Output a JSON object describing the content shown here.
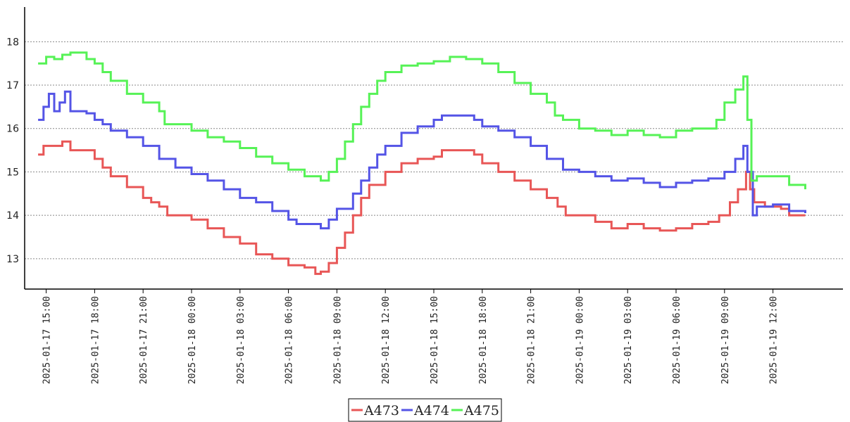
{
  "chart_data": {
    "type": "line",
    "title": "",
    "xlabel": "",
    "ylabel": "",
    "x_range": [
      "2025-01-17 13:40",
      "2025-01-19 16:20"
    ],
    "ylim": [
      12.3,
      18.8
    ],
    "y_ticks": [
      13,
      14,
      15,
      16,
      17,
      18
    ],
    "x_ticks": [
      "2025-01-17 15:00",
      "2025-01-17 18:00",
      "2025-01-17 21:00",
      "2025-01-18 00:00",
      "2025-01-18 03:00",
      "2025-01-18 06:00",
      "2025-01-18 09:00",
      "2025-01-18 12:00",
      "2025-01-18 15:00",
      "2025-01-18 18:00",
      "2025-01-18 21:00",
      "2025-01-19 00:00",
      "2025-01-19 03:00",
      "2025-01-19 06:00",
      "2025-01-19 09:00",
      "2025-01-19 12:00"
    ],
    "grid": "horizontal",
    "legend_position": "bottom-center",
    "series": [
      {
        "name": "A473",
        "color": "#e85656",
        "points": [
          [
            "2025-01-17 14:30",
            15.4
          ],
          [
            "2025-01-17 14:50",
            15.6
          ],
          [
            "2025-01-17 15:30",
            15.6
          ],
          [
            "2025-01-17 16:00",
            15.7
          ],
          [
            "2025-01-17 16:30",
            15.5
          ],
          [
            "2025-01-17 17:30",
            15.5
          ],
          [
            "2025-01-17 18:00",
            15.3
          ],
          [
            "2025-01-17 18:30",
            15.1
          ],
          [
            "2025-01-17 19:00",
            14.9
          ],
          [
            "2025-01-17 20:00",
            14.65
          ],
          [
            "2025-01-17 21:00",
            14.4
          ],
          [
            "2025-01-17 21:30",
            14.3
          ],
          [
            "2025-01-17 22:00",
            14.2
          ],
          [
            "2025-01-17 22:30",
            14.0
          ],
          [
            "2025-01-17 23:30",
            14.0
          ],
          [
            "2025-01-18 00:00",
            13.9
          ],
          [
            "2025-01-18 01:00",
            13.7
          ],
          [
            "2025-01-18 02:00",
            13.5
          ],
          [
            "2025-01-18 03:00",
            13.35
          ],
          [
            "2025-01-18 04:00",
            13.1
          ],
          [
            "2025-01-18 05:00",
            13.0
          ],
          [
            "2025-01-18 06:00",
            12.85
          ],
          [
            "2025-01-18 07:00",
            12.8
          ],
          [
            "2025-01-18 07:40",
            12.65
          ],
          [
            "2025-01-18 08:00",
            12.7
          ],
          [
            "2025-01-18 08:30",
            12.9
          ],
          [
            "2025-01-18 09:00",
            13.25
          ],
          [
            "2025-01-18 09:30",
            13.6
          ],
          [
            "2025-01-18 10:00",
            14.0
          ],
          [
            "2025-01-18 10:30",
            14.4
          ],
          [
            "2025-01-18 11:00",
            14.7
          ],
          [
            "2025-01-18 12:00",
            15.0
          ],
          [
            "2025-01-18 13:00",
            15.2
          ],
          [
            "2025-01-18 14:00",
            15.3
          ],
          [
            "2025-01-18 15:00",
            15.35
          ],
          [
            "2025-01-18 15:30",
            15.5
          ],
          [
            "2025-01-18 17:00",
            15.5
          ],
          [
            "2025-01-18 17:30",
            15.4
          ],
          [
            "2025-01-18 18:00",
            15.2
          ],
          [
            "2025-01-18 19:00",
            15.0
          ],
          [
            "2025-01-18 20:00",
            14.8
          ],
          [
            "2025-01-18 21:00",
            14.6
          ],
          [
            "2025-01-18 22:00",
            14.4
          ],
          [
            "2025-01-18 22:40",
            14.2
          ],
          [
            "2025-01-18 23:10",
            14.0
          ],
          [
            "2025-01-19 00:00",
            14.0
          ],
          [
            "2025-01-19 01:00",
            13.85
          ],
          [
            "2025-01-19 02:00",
            13.7
          ],
          [
            "2025-01-19 03:00",
            13.8
          ],
          [
            "2025-01-19 04:00",
            13.7
          ],
          [
            "2025-01-19 05:00",
            13.65
          ],
          [
            "2025-01-19 06:00",
            13.7
          ],
          [
            "2025-01-19 07:00",
            13.8
          ],
          [
            "2025-01-19 08:00",
            13.85
          ],
          [
            "2025-01-19 08:40",
            14.0
          ],
          [
            "2025-01-19 09:20",
            14.3
          ],
          [
            "2025-01-19 09:50",
            14.6
          ],
          [
            "2025-01-19 10:20",
            15.0
          ],
          [
            "2025-01-19 10:35",
            14.6
          ],
          [
            "2025-01-19 10:50",
            14.3
          ],
          [
            "2025-01-19 11:30",
            14.2
          ],
          [
            "2025-01-19 12:30",
            14.15
          ],
          [
            "2025-01-19 13:00",
            14.0
          ],
          [
            "2025-01-19 14:00",
            14.0
          ]
        ]
      },
      {
        "name": "A474",
        "color": "#5454e6",
        "points": [
          [
            "2025-01-17 14:30",
            16.2
          ],
          [
            "2025-01-17 14:50",
            16.5
          ],
          [
            "2025-01-17 15:10",
            16.8
          ],
          [
            "2025-01-17 15:30",
            16.4
          ],
          [
            "2025-01-17 15:50",
            16.6
          ],
          [
            "2025-01-17 16:10",
            16.85
          ],
          [
            "2025-01-17 16:30",
            16.4
          ],
          [
            "2025-01-17 17:30",
            16.35
          ],
          [
            "2025-01-17 18:00",
            16.2
          ],
          [
            "2025-01-17 18:30",
            16.1
          ],
          [
            "2025-01-17 19:00",
            15.95
          ],
          [
            "2025-01-17 20:00",
            15.8
          ],
          [
            "2025-01-17 21:00",
            15.6
          ],
          [
            "2025-01-17 22:00",
            15.3
          ],
          [
            "2025-01-17 23:00",
            15.1
          ],
          [
            "2025-01-18 00:00",
            14.95
          ],
          [
            "2025-01-18 01:00",
            14.8
          ],
          [
            "2025-01-18 02:00",
            14.6
          ],
          [
            "2025-01-18 03:00",
            14.4
          ],
          [
            "2025-01-18 04:00",
            14.3
          ],
          [
            "2025-01-18 05:00",
            14.1
          ],
          [
            "2025-01-18 06:00",
            13.9
          ],
          [
            "2025-01-18 06:30",
            13.8
          ],
          [
            "2025-01-18 08:00",
            13.7
          ],
          [
            "2025-01-18 08:30",
            13.9
          ],
          [
            "2025-01-18 09:00",
            14.15
          ],
          [
            "2025-01-18 10:00",
            14.5
          ],
          [
            "2025-01-18 10:30",
            14.8
          ],
          [
            "2025-01-18 11:00",
            15.1
          ],
          [
            "2025-01-18 11:30",
            15.4
          ],
          [
            "2025-01-18 12:00",
            15.6
          ],
          [
            "2025-01-18 13:00",
            15.9
          ],
          [
            "2025-01-18 14:00",
            16.05
          ],
          [
            "2025-01-18 15:00",
            16.2
          ],
          [
            "2025-01-18 15:30",
            16.3
          ],
          [
            "2025-01-18 17:00",
            16.3
          ],
          [
            "2025-01-18 17:30",
            16.2
          ],
          [
            "2025-01-18 18:00",
            16.05
          ],
          [
            "2025-01-18 19:00",
            15.95
          ],
          [
            "2025-01-18 20:00",
            15.8
          ],
          [
            "2025-01-18 21:00",
            15.6
          ],
          [
            "2025-01-18 22:00",
            15.3
          ],
          [
            "2025-01-18 23:00",
            15.05
          ],
          [
            "2025-01-19 00:00",
            15.0
          ],
          [
            "2025-01-19 01:00",
            14.9
          ],
          [
            "2025-01-19 02:00",
            14.8
          ],
          [
            "2025-01-19 03:00",
            14.85
          ],
          [
            "2025-01-19 04:00",
            14.75
          ],
          [
            "2025-01-19 05:00",
            14.65
          ],
          [
            "2025-01-19 06:00",
            14.75
          ],
          [
            "2025-01-19 07:00",
            14.8
          ],
          [
            "2025-01-19 08:00",
            14.85
          ],
          [
            "2025-01-19 09:00",
            15.0
          ],
          [
            "2025-01-19 09:40",
            15.3
          ],
          [
            "2025-01-19 10:10",
            15.6
          ],
          [
            "2025-01-19 10:25",
            15.0
          ],
          [
            "2025-01-19 10:45",
            14.0
          ],
          [
            "2025-01-19 11:00",
            14.2
          ],
          [
            "2025-01-19 12:00",
            14.25
          ],
          [
            "2025-01-19 13:00",
            14.1
          ],
          [
            "2025-01-19 14:00",
            14.05
          ]
        ]
      },
      {
        "name": "A475",
        "color": "#56f256",
        "points": [
          [
            "2025-01-17 14:30",
            17.5
          ],
          [
            "2025-01-17 15:00",
            17.65
          ],
          [
            "2025-01-17 15:30",
            17.6
          ],
          [
            "2025-01-17 16:00",
            17.7
          ],
          [
            "2025-01-17 16:30",
            17.75
          ],
          [
            "2025-01-17 17:30",
            17.6
          ],
          [
            "2025-01-17 18:00",
            17.5
          ],
          [
            "2025-01-17 18:30",
            17.3
          ],
          [
            "2025-01-17 19:00",
            17.1
          ],
          [
            "2025-01-17 20:00",
            16.8
          ],
          [
            "2025-01-17 21:00",
            16.6
          ],
          [
            "2025-01-17 22:00",
            16.4
          ],
          [
            "2025-01-17 22:20",
            16.1
          ],
          [
            "2025-01-17 23:00",
            16.1
          ],
          [
            "2025-01-18 00:00",
            15.95
          ],
          [
            "2025-01-18 01:00",
            15.8
          ],
          [
            "2025-01-18 02:00",
            15.7
          ],
          [
            "2025-01-18 03:00",
            15.55
          ],
          [
            "2025-01-18 04:00",
            15.35
          ],
          [
            "2025-01-18 05:00",
            15.2
          ],
          [
            "2025-01-18 06:00",
            15.05
          ],
          [
            "2025-01-18 07:00",
            14.9
          ],
          [
            "2025-01-18 08:00",
            14.8
          ],
          [
            "2025-01-18 08:30",
            15.0
          ],
          [
            "2025-01-18 09:00",
            15.3
          ],
          [
            "2025-01-18 09:30",
            15.7
          ],
          [
            "2025-01-18 10:00",
            16.1
          ],
          [
            "2025-01-18 10:30",
            16.5
          ],
          [
            "2025-01-18 11:00",
            16.8
          ],
          [
            "2025-01-18 11:30",
            17.1
          ],
          [
            "2025-01-18 12:00",
            17.3
          ],
          [
            "2025-01-18 13:00",
            17.45
          ],
          [
            "2025-01-18 14:00",
            17.5
          ],
          [
            "2025-01-18 15:00",
            17.55
          ],
          [
            "2025-01-18 16:00",
            17.65
          ],
          [
            "2025-01-18 17:00",
            17.6
          ],
          [
            "2025-01-18 18:00",
            17.5
          ],
          [
            "2025-01-18 19:00",
            17.3
          ],
          [
            "2025-01-18 20:00",
            17.05
          ],
          [
            "2025-01-18 21:00",
            16.8
          ],
          [
            "2025-01-18 22:00",
            16.6
          ],
          [
            "2025-01-18 22:30",
            16.3
          ],
          [
            "2025-01-18 23:00",
            16.2
          ],
          [
            "2025-01-19 00:00",
            16.0
          ],
          [
            "2025-01-19 01:00",
            15.95
          ],
          [
            "2025-01-19 02:00",
            15.85
          ],
          [
            "2025-01-19 03:00",
            15.95
          ],
          [
            "2025-01-19 04:00",
            15.85
          ],
          [
            "2025-01-19 05:00",
            15.8
          ],
          [
            "2025-01-19 06:00",
            15.95
          ],
          [
            "2025-01-19 07:00",
            16.0
          ],
          [
            "2025-01-19 08:00",
            16.0
          ],
          [
            "2025-01-19 08:30",
            16.2
          ],
          [
            "2025-01-19 09:00",
            16.6
          ],
          [
            "2025-01-19 09:40",
            16.9
          ],
          [
            "2025-01-19 10:10",
            17.2
          ],
          [
            "2025-01-19 10:25",
            16.2
          ],
          [
            "2025-01-19 10:40",
            14.8
          ],
          [
            "2025-01-19 11:00",
            14.9
          ],
          [
            "2025-01-19 12:00",
            14.9
          ],
          [
            "2025-01-19 13:00",
            14.7
          ],
          [
            "2025-01-19 14:00",
            14.6
          ]
        ]
      }
    ]
  }
}
